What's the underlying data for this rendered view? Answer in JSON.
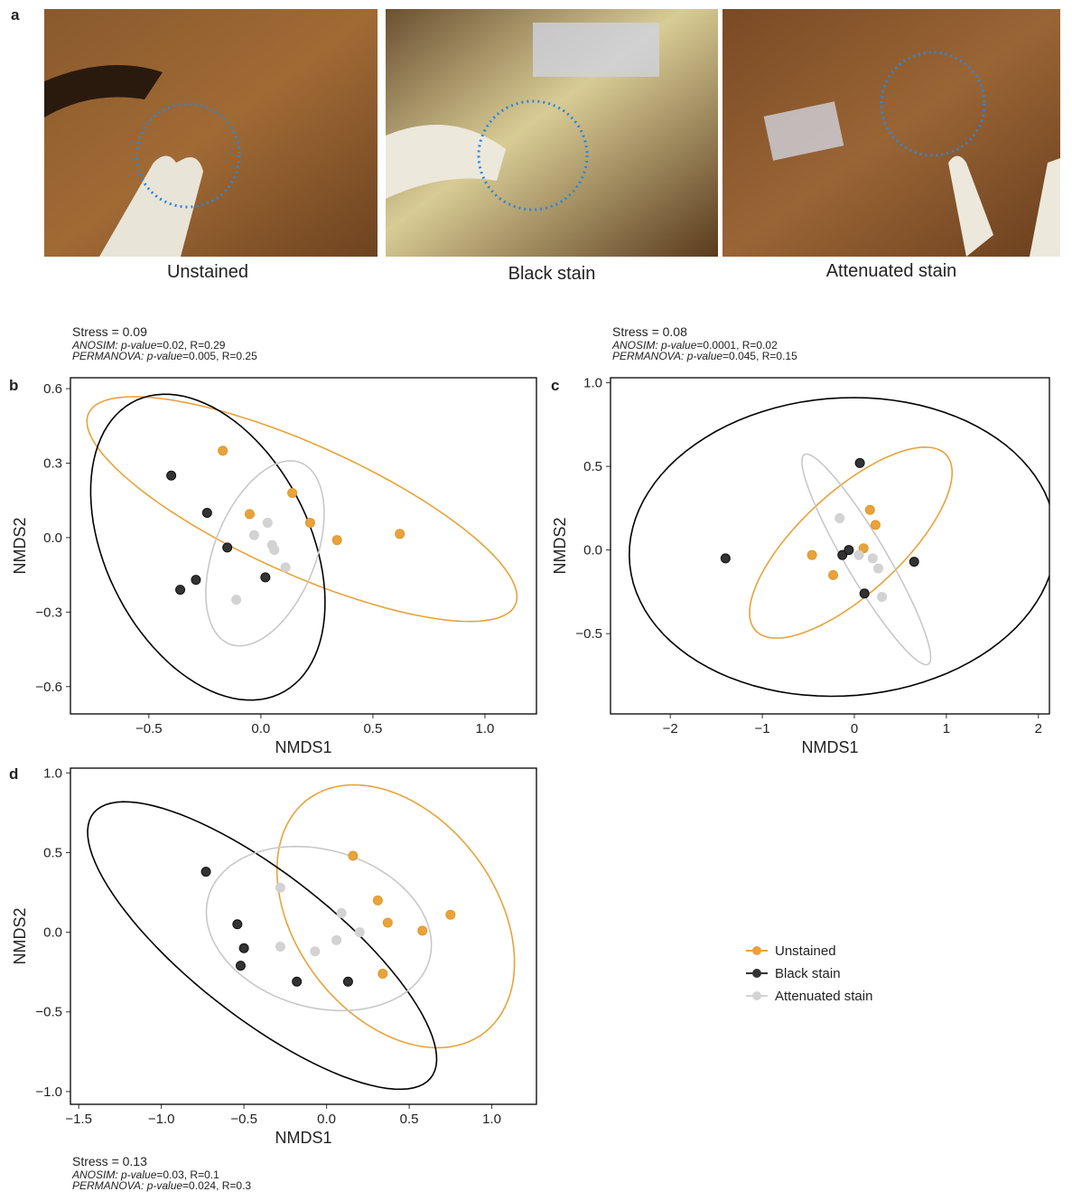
{
  "figure": {
    "panel_a": {
      "panel": "a",
      "photos": [
        {
          "label": "Unstained"
        },
        {
          "label": "Black stain"
        },
        {
          "label": "Attenuated stain"
        }
      ]
    }
  },
  "chart_data": [
    {
      "type": "scatter",
      "panel": "b",
      "stress": "Stress = 0.09",
      "anosim": {
        "name": "ANOSIM: p-value",
        "text": "=0.02, R=0.29"
      },
      "permanova": {
        "name": "PERMANOVA: p-value",
        "text": "=0.005, R=0.25"
      },
      "xlabel": "NMDS1",
      "ylabel": "NMDS2",
      "xlim": [
        -0.85,
        1.23
      ],
      "ylim": [
        -0.71,
        0.644
      ],
      "xticks": [
        {
          "value": -0.5,
          "label": "−0.5"
        },
        {
          "value": 0,
          "label": "0.0"
        },
        0.5,
        {
          "value": 1,
          "label": "1.0"
        }
      ],
      "yticks": [
        {
          "value": -0.6,
          "label": "−0.6"
        },
        {
          "value": -0.3,
          "label": "−0.3"
        },
        {
          "value": 0,
          "label": "0.0"
        },
        0.3,
        0.6
      ],
      "series": [
        {
          "name": "Unstained",
          "color": "#e8a33a",
          "x": [
            -0.17,
            0.14,
            -0.05,
            0.22,
            0.34,
            0.62
          ],
          "y": [
            0.35,
            0.18,
            0.095,
            0.06,
            -0.01,
            0.015
          ]
        },
        {
          "name": "Black stain",
          "color": "#333333",
          "x": [
            -0.4,
            -0.24,
            -0.15,
            -0.29,
            -0.36,
            0.02
          ],
          "y": [
            0.25,
            0.1,
            -0.04,
            -0.17,
            -0.21,
            -0.16
          ]
        },
        {
          "name": "Attenuated stain",
          "color": "#d3d3d3",
          "x": [
            -0.03,
            0.03,
            0.05,
            0.06,
            0.11,
            -0.11
          ],
          "y": [
            0.01,
            0.06,
            -0.03,
            -0.05,
            -0.12,
            -0.25
          ]
        }
      ]
    },
    {
      "type": "scatter",
      "panel": "c",
      "stress": "Stress = 0.08",
      "anosim": {
        "name": "ANOSIM: p-value",
        "text": "=0.0001, R=0.02"
      },
      "permanova": {
        "name": "PERMANOVA: p-value",
        "text": "=0.045, R=0.15"
      },
      "xlabel": "NMDS1",
      "ylabel": "NMDS2",
      "xlim": [
        -2.65,
        2.12
      ],
      "ylim": [
        -0.98,
        1.03
      ],
      "xticks": [
        {
          "value": -2,
          "label": "−2"
        },
        {
          "value": -1,
          "label": "−1"
        },
        0,
        1,
        2
      ],
      "yticks": [
        {
          "value": -0.5,
          "label": "−0.5"
        },
        {
          "value": 0,
          "label": "0.0"
        },
        0.5,
        {
          "value": 1,
          "label": "1.0"
        }
      ],
      "series": [
        {
          "name": "Unstained",
          "color": "#e8a33a",
          "x": [
            0.17,
            0.23,
            0.1,
            -0.46,
            -0.23
          ],
          "y": [
            0.24,
            0.15,
            0.01,
            -0.03,
            -0.15
          ]
        },
        {
          "name": "Black stain",
          "color": "#333333",
          "x": [
            0.06,
            -1.4,
            -0.13,
            -0.06,
            0.11,
            0.65
          ],
          "y": [
            0.52,
            -0.05,
            -0.03,
            0.0,
            -0.26,
            -0.07
          ]
        },
        {
          "name": "Attenuated stain",
          "color": "#d3d3d3",
          "x": [
            -0.16,
            0.05,
            0.2,
            0.26,
            0.3
          ],
          "y": [
            0.19,
            -0.03,
            -0.05,
            -0.11,
            -0.28
          ]
        }
      ]
    },
    {
      "type": "scatter",
      "panel": "d",
      "stress": "Stress = 0.13",
      "anosim": {
        "name": "ANOSIM: p-value",
        "text": "=0.03, R=0.1"
      },
      "permanova": {
        "name": "PERMANOVA: p-value",
        "text": "=0.024, R=0.3"
      },
      "xlabel": "NMDS1",
      "ylabel": "NMDS2",
      "xlim": [
        -1.55,
        1.27
      ],
      "ylim": [
        -1.08,
        1.03
      ],
      "xticks": [
        {
          "value": -1.5,
          "label": "−1.5"
        },
        {
          "value": -1,
          "label": "−1.0"
        },
        {
          "value": -0.5,
          "label": "−0.5"
        },
        {
          "value": 0,
          "label": "0.0"
        },
        0.5,
        {
          "value": 1,
          "label": "1.0"
        }
      ],
      "yticks": [
        {
          "value": -1,
          "label": "−1.0"
        },
        {
          "value": -0.5,
          "label": "−0.5"
        },
        {
          "value": 0,
          "label": "0.0"
        },
        0.5,
        {
          "value": 1,
          "label": "1.0"
        }
      ],
      "legend": "right",
      "series": [
        {
          "name": "Unstained",
          "color": "#e8a33a",
          "x": [
            0.16,
            0.31,
            0.37,
            0.58,
            0.75,
            0.34
          ],
          "y": [
            0.48,
            0.2,
            0.06,
            0.01,
            0.11,
            -0.26
          ]
        },
        {
          "name": "Black stain",
          "color": "#333333",
          "x": [
            -0.73,
            -0.54,
            -0.5,
            -0.52,
            -0.18,
            0.13
          ],
          "y": [
            0.38,
            0.05,
            -0.1,
            -0.21,
            -0.31,
            -0.31
          ]
        },
        {
          "name": "Attenuated stain",
          "color": "#d3d3d3",
          "x": [
            -0.28,
            0.09,
            0.2,
            0.06,
            -0.07,
            -0.28
          ],
          "y": [
            0.28,
            0.12,
            0.0,
            -0.05,
            -0.12,
            -0.09
          ]
        }
      ]
    }
  ]
}
